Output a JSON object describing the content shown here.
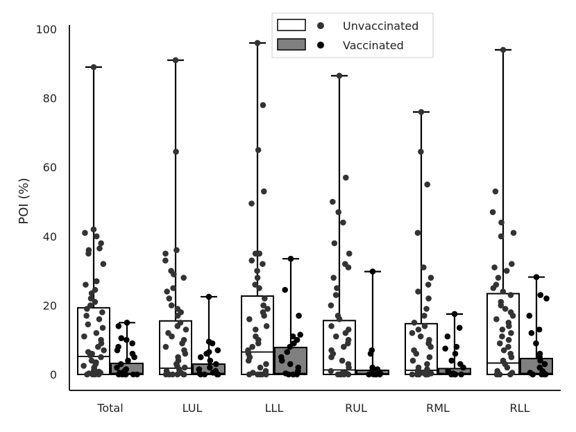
{
  "chart_data": {
    "type": "box",
    "title": "",
    "xlabel": "",
    "ylabel": "POI (%)",
    "ylim": [
      0,
      100
    ],
    "yticks": [
      0,
      20,
      40,
      60,
      80,
      100
    ],
    "categories": [
      "Total",
      "LUL",
      "LLL",
      "RUL",
      "RML",
      "RLL"
    ],
    "legend": {
      "location": "top",
      "entries": [
        "Unvaccinated",
        "Vaccinated"
      ]
    },
    "colors": {
      "unvaccinated_fill": "#ffffff",
      "vaccinated_fill": "#808080",
      "unvaccinated_point": "#333333",
      "vaccinated_point": "#000000",
      "stroke": "#000000"
    },
    "series": [
      {
        "name": "Unvaccinated",
        "boxes": [
          {
            "category": "Total",
            "min": 0,
            "q1": 0,
            "median": 5.2,
            "q3": 19.3,
            "max": 89,
            "points": [
              0,
              0,
              0,
              0,
              0.3,
              0.5,
              0.8,
              1,
              1.5,
              2,
              2.5,
              3,
              3.5,
              4,
              5,
              5.5,
              6,
              6.5,
              7,
              8,
              9,
              10,
              11,
              12,
              13.5,
              14.5,
              16,
              17,
              18,
              19,
              20,
              21,
              22,
              23.5,
              24.5,
              26,
              27,
              32,
              35,
              36,
              36.5,
              38,
              40,
              41,
              42,
              89
            ]
          },
          {
            "category": "LUL",
            "min": 0,
            "q1": 0,
            "median": 1.8,
            "q3": 15.5,
            "max": 91,
            "points": [
              0,
              0,
              0,
              0,
              0,
              0,
              0.3,
              0.5,
              1,
              1.5,
              2,
              2.5,
              3,
              4,
              5,
              6,
              7,
              8,
              9,
              10,
              11,
              12,
              13,
              14,
              15,
              17,
              18,
              19,
              20,
              22,
              24,
              25,
              28,
              29,
              30,
              33,
              35,
              36,
              64.5,
              91
            ]
          },
          {
            "category": "LLL",
            "min": 0,
            "q1": 0,
            "median": 6.5,
            "q3": 22.7,
            "max": 96,
            "points": [
              0,
              0,
              0,
              0,
              0,
              0.5,
              1,
              2,
              3,
              4,
              5,
              6,
              7,
              8,
              9,
              10,
              11,
              13,
              14,
              16,
              17,
              18,
              19,
              20,
              22,
              25,
              26,
              28,
              30,
              32,
              33,
              35,
              35,
              49.5,
              53,
              65,
              78,
              96
            ]
          },
          {
            "category": "RUL",
            "min": 0,
            "q1": 0,
            "median": 1.3,
            "q3": 15.6,
            "max": 86.5,
            "points": [
              0,
              0,
              0,
              0,
              0,
              0.3,
              0.5,
              1,
              2,
              3,
              4,
              5,
              6,
              7,
              8,
              9,
              10,
              11,
              12,
              13,
              14,
              16,
              17,
              20,
              23,
              25,
              28,
              31,
              32,
              35,
              38,
              44,
              47,
              50,
              57,
              86.5
            ]
          },
          {
            "category": "RML",
            "min": 0,
            "q1": 0,
            "median": 1.2,
            "q3": 14.7,
            "max": 76,
            "points": [
              0,
              0,
              0,
              0,
              0,
              0,
              0.3,
              0.5,
              1,
              1.5,
              2,
              3,
              4,
              5,
              6,
              7,
              8,
              9,
              10,
              11,
              12,
              13,
              14,
              15,
              17,
              19,
              22,
              24,
              26,
              28,
              31,
              41,
              55,
              64.5,
              76
            ]
          },
          {
            "category": "RLL",
            "min": 0,
            "q1": 0,
            "median": 3.3,
            "q3": 23.4,
            "max": 94,
            "points": [
              0,
              0,
              0,
              0,
              0.5,
              1,
              2,
              3,
              4,
              5,
              6,
              7,
              8,
              9,
              10,
              11,
              12,
              13,
              14,
              15,
              16,
              17,
              18,
              19,
              20,
              21,
              23,
              24,
              25,
              26,
              28,
              30,
              31,
              32,
              40,
              41,
              44,
              47,
              53,
              94
            ]
          }
        ]
      },
      {
        "name": "Vaccinated",
        "boxes": [
          {
            "category": "Total",
            "min": 0,
            "q1": 0,
            "median": 0.3,
            "q3": 3.2,
            "max": 15,
            "points": [
              0,
              0,
              0,
              0,
              0,
              0,
              0.3,
              0.5,
              1,
              1.5,
              2,
              3,
              4,
              5,
              6,
              7,
              8,
              9,
              10,
              10.5,
              14,
              15
            ]
          },
          {
            "category": "LUL",
            "min": 0,
            "q1": 0,
            "median": 0.3,
            "q3": 3.0,
            "max": 22.5,
            "points": [
              0,
              0,
              0,
              0,
              0.3,
              0.5,
              1,
              1.5,
              2,
              3,
              4,
              5,
              6,
              6.5,
              7,
              9,
              9.5,
              22.5
            ]
          },
          {
            "category": "LLL",
            "min": 0,
            "q1": 0,
            "median": 0.3,
            "q3": 7.8,
            "max": 33.5,
            "points": [
              0,
              0,
              0,
              0,
              0.3,
              1,
              2,
              3,
              4,
              5,
              6.5,
              8,
              9,
              10,
              11,
              11.5,
              17,
              24.5,
              33.5
            ]
          },
          {
            "category": "RUL",
            "min": 0,
            "q1": 0,
            "median": 0.2,
            "q3": 1.2,
            "max": 29.8,
            "points": [
              0,
              0,
              0,
              0,
              0,
              0.3,
              0.5,
              1,
              1.5,
              2,
              6,
              7,
              29.8
            ]
          },
          {
            "category": "RML",
            "min": 0,
            "q1": 0,
            "median": 0.3,
            "q3": 1.7,
            "max": 17.5,
            "points": [
              0,
              0,
              0,
              0,
              0.3,
              1,
              2,
              3,
              4,
              6,
              7.5,
              8,
              11,
              13.5,
              17.5
            ]
          },
          {
            "category": "RLL",
            "min": 0,
            "q1": 0,
            "median": 0.3,
            "q3": 4.6,
            "max": 28.2,
            "points": [
              0,
              0,
              0,
              0,
              0,
              0.3,
              0.5,
              1,
              2,
              3,
              4,
              5,
              6,
              9,
              12,
              13,
              17,
              22,
              23,
              28.2
            ]
          }
        ]
      }
    ]
  }
}
